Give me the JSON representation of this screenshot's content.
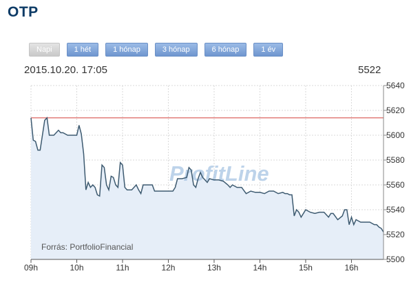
{
  "header": {
    "title": "OTP"
  },
  "tabs": [
    {
      "label": "Napi",
      "active": true
    },
    {
      "label": "1 hét",
      "active": false
    },
    {
      "label": "1 hónap",
      "active": false
    },
    {
      "label": "3 hónap",
      "active": false
    },
    {
      "label": "6 hónap",
      "active": false
    },
    {
      "label": "1 év",
      "active": false
    }
  ],
  "info": {
    "timestamp": "2015.10.20. 17:05",
    "last_price": "5522"
  },
  "watermark": "ProfitLine",
  "source": "Forrás: PortfolioFinancial",
  "colors": {
    "line": "#3d5a70",
    "area": "#e6eef8",
    "reference": "#d9534f",
    "title": "#0d3b66",
    "tab": "#7fa2d8"
  },
  "chart_data": {
    "type": "area",
    "x_unit": "hour of day",
    "xlim": [
      9,
      16.7
    ],
    "ylim": [
      5500,
      5640
    ],
    "x_ticks": [
      9,
      10,
      11,
      12,
      13,
      14,
      15,
      16
    ],
    "x_tick_labels": [
      "09h",
      "10h",
      "11h",
      "12h",
      "13h",
      "14h",
      "15h",
      "16h"
    ],
    "y_ticks": [
      5500,
      5520,
      5540,
      5560,
      5580,
      5600,
      5620,
      5640
    ],
    "reference_line": 5614,
    "grid": true,
    "x": [
      9.0,
      9.05,
      9.1,
      9.15,
      9.2,
      9.3,
      9.35,
      9.4,
      9.45,
      9.5,
      9.6,
      9.65,
      9.7,
      9.8,
      9.9,
      10.0,
      10.05,
      10.1,
      10.15,
      10.2,
      10.25,
      10.3,
      10.35,
      10.4,
      10.45,
      10.5,
      10.55,
      10.6,
      10.65,
      10.7,
      10.75,
      10.8,
      10.85,
      10.9,
      10.95,
      11.0,
      11.05,
      11.1,
      11.2,
      11.3,
      11.35,
      11.4,
      11.45,
      11.5,
      11.55,
      11.6,
      11.65,
      11.7,
      11.8,
      11.9,
      12.0,
      12.05,
      12.1,
      12.15,
      12.2,
      12.3,
      12.4,
      12.45,
      12.5,
      12.55,
      12.6,
      12.65,
      12.7,
      12.75,
      12.8,
      12.85,
      12.9,
      13.0,
      13.1,
      13.2,
      13.3,
      13.35,
      13.4,
      13.5,
      13.6,
      13.7,
      13.8,
      13.9,
      14.0,
      14.1,
      14.2,
      14.3,
      14.4,
      14.5,
      14.55,
      14.6,
      14.65,
      14.7,
      14.75,
      14.8,
      14.85,
      14.9,
      15.0,
      15.1,
      15.2,
      15.3,
      15.4,
      15.5,
      15.55,
      15.6,
      15.7,
      15.8,
      15.85,
      15.9,
      15.95,
      16.0,
      16.05,
      16.1,
      16.2,
      16.3,
      16.4,
      16.5,
      16.55,
      16.6,
      16.65,
      16.7
    ],
    "y": [
      5614,
      5596,
      5595,
      5588,
      5588,
      5612,
      5614,
      5600,
      5600,
      5600,
      5604,
      5602,
      5602,
      5600,
      5600,
      5600,
      5608,
      5601,
      5585,
      5556,
      5562,
      5558,
      5560,
      5558,
      5552,
      5551,
      5576,
      5574,
      5560,
      5556,
      5567,
      5566,
      5560,
      5558,
      5578,
      5576,
      5558,
      5556,
      5556,
      5560,
      5556,
      5553,
      5560,
      5560,
      5560,
      5560,
      5560,
      5555,
      5555,
      5555,
      5555,
      5555,
      5555,
      5558,
      5565,
      5565,
      5566,
      5574,
      5572,
      5560,
      5558,
      5565,
      5570,
      5566,
      5564,
      5562,
      5565,
      5564,
      5564,
      5563,
      5560,
      5558,
      5560,
      5558,
      5558,
      5553,
      5555,
      5554,
      5554,
      5553,
      5555,
      5555,
      5553,
      5554,
      5553,
      5553,
      5552,
      5552,
      5535,
      5540,
      5538,
      5534,
      5540,
      5538,
      5537,
      5538,
      5538,
      5534,
      5537,
      5537,
      5532,
      5535,
      5540,
      5540,
      5528,
      5534,
      5528,
      5532,
      5530,
      5530,
      5530,
      5528,
      5528,
      5526,
      5525,
      5522
    ]
  }
}
